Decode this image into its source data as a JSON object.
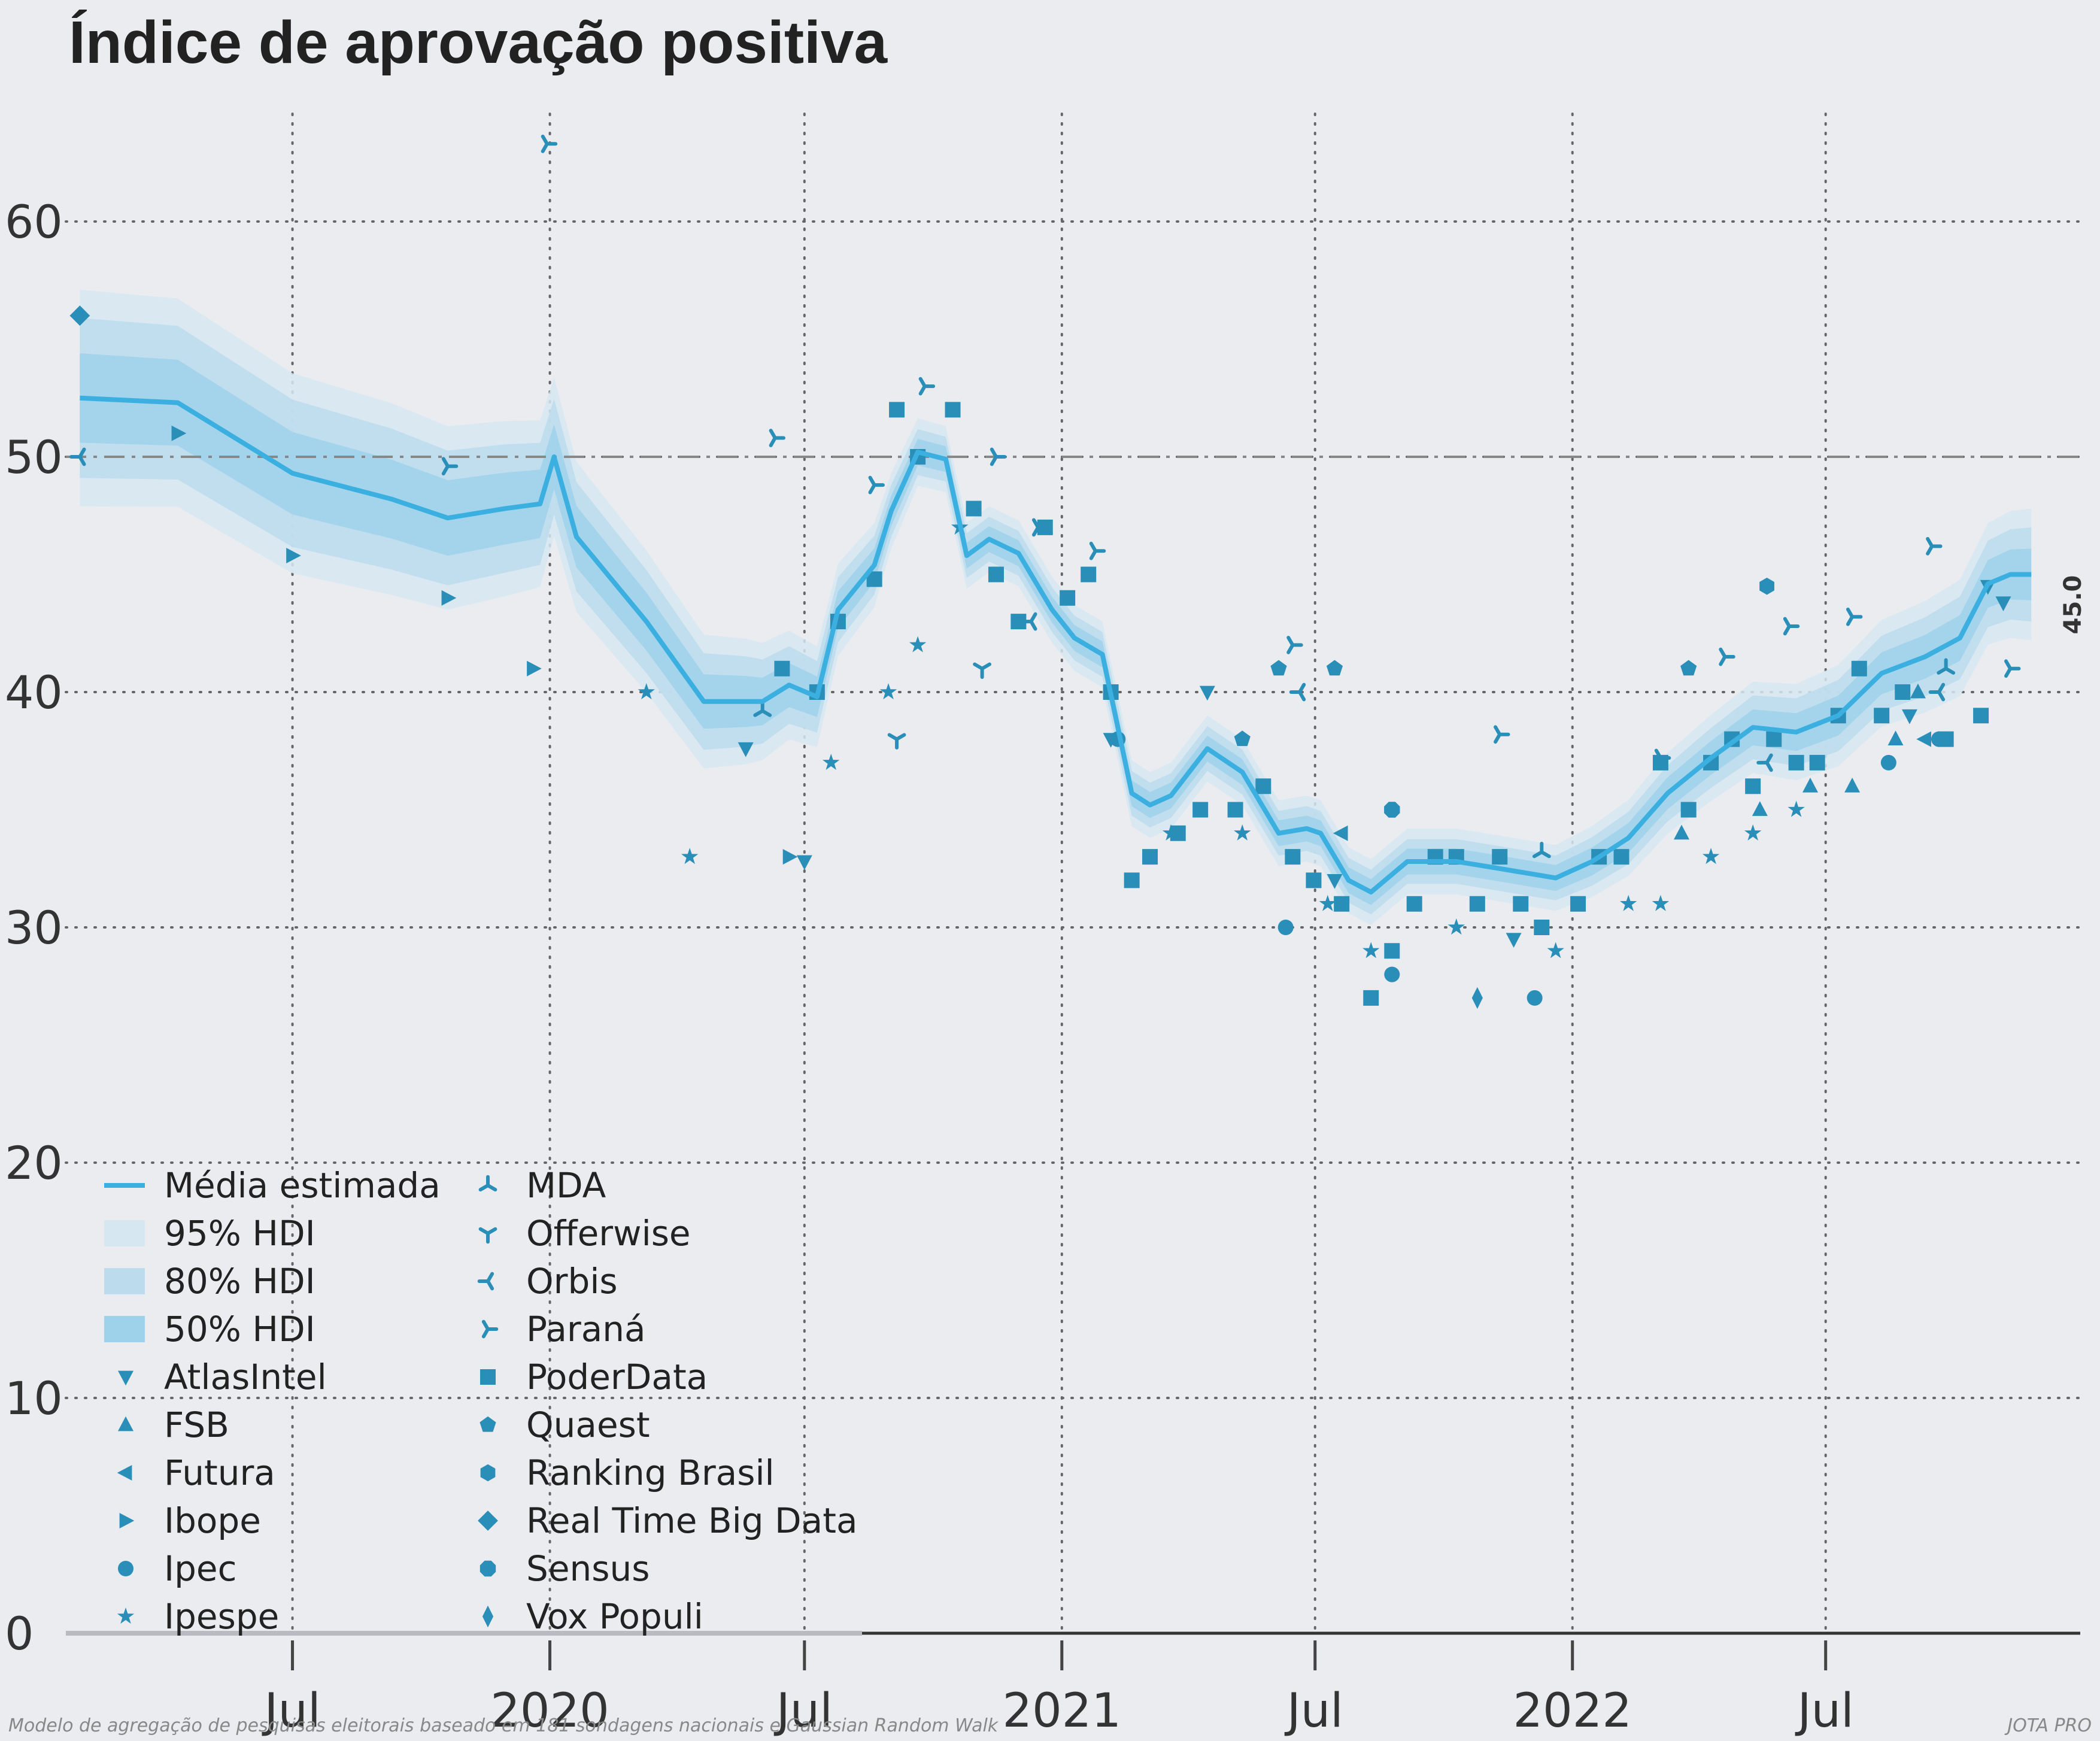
{
  "colors": {
    "background": "#ebecf0",
    "mean_line": "#3bb0e0",
    "band_95": "#d6e7f1",
    "band_80": "#bcdced",
    "band_50": "#9ed2ea",
    "markers": "#2a8fb8",
    "grid": "#666666",
    "reference_line": "#888888"
  },
  "chart_data": {
    "type": "line",
    "title": "Índice de aprovação positiva",
    "xlabel": "",
    "ylabel": "",
    "x_range": [
      "2019-01-20",
      "2022-12-30"
    ],
    "ylim": [
      0,
      65
    ],
    "y_ticks": [
      0,
      10,
      20,
      30,
      40,
      50,
      60
    ],
    "x_ticks": [
      {
        "date": "2019-07-01",
        "label": "Jul"
      },
      {
        "date": "2020-01-01",
        "label": "2020"
      },
      {
        "date": "2020-07-01",
        "label": "Jul"
      },
      {
        "date": "2021-01-01",
        "label": "2021"
      },
      {
        "date": "2021-07-01",
        "label": "Jul"
      },
      {
        "date": "2022-01-01",
        "label": "2022"
      },
      {
        "date": "2022-07-01",
        "label": "Jul"
      }
    ],
    "grid": "dotted",
    "reference_line": {
      "y": 50,
      "style": "dash-dot"
    },
    "legend_position": "bottom-left",
    "end_value_label": "45.0",
    "footnote_left": "Modelo de agregação de pesquisas eleitorais baseado em 181 sondagens nacionais e Gaussian Random Walk",
    "footnote_right": "JOTA PRO",
    "mean": {
      "name": "Média estimada",
      "points": [
        [
          "2019-01-30",
          52.5
        ],
        [
          "2019-04-10",
          52.3
        ],
        [
          "2019-07-01",
          49.3
        ],
        [
          "2019-09-10",
          48.2
        ],
        [
          "2019-10-20",
          47.4
        ],
        [
          "2019-11-30",
          47.8
        ],
        [
          "2019-12-25",
          48.0
        ],
        [
          "2020-01-04",
          50.0
        ],
        [
          "2020-01-20",
          46.6
        ],
        [
          "2020-03-10",
          43.0
        ],
        [
          "2020-04-20",
          39.6
        ],
        [
          "2020-05-20",
          39.6
        ],
        [
          "2020-06-01",
          39.6
        ],
        [
          "2020-06-20",
          40.3
        ],
        [
          "2020-07-10",
          39.8
        ],
        [
          "2020-07-25",
          43.5
        ],
        [
          "2020-08-20",
          45.4
        ],
        [
          "2020-09-01",
          47.7
        ],
        [
          "2020-09-20",
          50.2
        ],
        [
          "2020-10-10",
          49.9
        ],
        [
          "2020-10-25",
          45.8
        ],
        [
          "2020-11-10",
          46.5
        ],
        [
          "2020-12-01",
          45.9
        ],
        [
          "2020-12-25",
          43.5
        ],
        [
          "2021-01-10",
          42.3
        ],
        [
          "2021-01-30",
          41.6
        ],
        [
          "2021-02-20",
          35.7
        ],
        [
          "2021-03-05",
          35.2
        ],
        [
          "2021-03-20",
          35.6
        ],
        [
          "2021-04-15",
          37.6
        ],
        [
          "2021-05-10",
          36.6
        ],
        [
          "2021-06-05",
          34.0
        ],
        [
          "2021-06-25",
          34.2
        ],
        [
          "2021-07-05",
          34.0
        ],
        [
          "2021-07-25",
          32.0
        ],
        [
          "2021-08-10",
          31.5
        ],
        [
          "2021-09-05",
          32.8
        ],
        [
          "2021-10-10",
          32.8
        ],
        [
          "2021-11-10",
          32.5
        ],
        [
          "2021-12-20",
          32.1
        ],
        [
          "2022-01-15",
          32.8
        ],
        [
          "2022-02-10",
          33.8
        ],
        [
          "2022-03-10",
          35.7
        ],
        [
          "2022-04-10",
          37.2
        ],
        [
          "2022-05-10",
          38.5
        ],
        [
          "2022-06-10",
          38.3
        ],
        [
          "2022-07-10",
          39.0
        ],
        [
          "2022-08-10",
          40.8
        ],
        [
          "2022-09-10",
          41.5
        ],
        [
          "2022-10-05",
          42.3
        ],
        [
          "2022-10-25",
          44.6
        ],
        [
          "2022-11-10",
          45.0
        ],
        [
          "2022-11-25",
          45.0
        ]
      ]
    },
    "bands": [
      {
        "name": "95% HDI",
        "half_width_start": 4.6,
        "half_width_mid": 1.4,
        "half_width_end": 2.8
      },
      {
        "name": "80% HDI",
        "half_width_start": 3.4,
        "half_width_mid": 0.95,
        "half_width_end": 2.0
      },
      {
        "name": "50% HDI",
        "half_width_start": 1.9,
        "half_width_mid": 0.55,
        "half_width_end": 1.1
      }
    ],
    "series": [
      {
        "name": "AtlasIntel",
        "marker": "tri-down",
        "points": [
          [
            "2020-05-20",
            37.6
          ],
          [
            "2020-07-01",
            32.8
          ],
          [
            "2021-02-05",
            38.0
          ],
          [
            "2021-04-15",
            40.0
          ],
          [
            "2021-07-15",
            32.0
          ],
          [
            "2021-11-20",
            29.5
          ],
          [
            "2022-08-30",
            39.0
          ],
          [
            "2022-10-25",
            44.5
          ],
          [
            "2022-11-05",
            43.8
          ]
        ]
      },
      {
        "name": "FSB",
        "marker": "tri-up",
        "points": [
          [
            "2022-03-20",
            34.0
          ],
          [
            "2022-05-15",
            35.0
          ],
          [
            "2022-06-20",
            36.0
          ],
          [
            "2022-07-20",
            36.0
          ],
          [
            "2022-08-20",
            38.0
          ],
          [
            "2022-09-05",
            40.0
          ]
        ]
      },
      {
        "name": "Futura",
        "marker": "tri-left",
        "points": [
          [
            "2021-07-20",
            34.0
          ],
          [
            "2022-09-10",
            38.0
          ]
        ]
      },
      {
        "name": "Ibope",
        "marker": "tri-right",
        "points": [
          [
            "2019-04-10",
            51.0
          ],
          [
            "2019-07-01",
            45.8
          ],
          [
            "2019-10-20",
            44.0
          ],
          [
            "2019-12-20",
            41.0
          ],
          [
            "2020-06-20",
            33.0
          ]
        ]
      },
      {
        "name": "Ipec",
        "marker": "circle",
        "points": [
          [
            "2021-02-10",
            38.0
          ],
          [
            "2021-06-10",
            30.0
          ],
          [
            "2021-08-25",
            28.0
          ],
          [
            "2021-12-05",
            27.0
          ],
          [
            "2022-08-15",
            37.0
          ],
          [
            "2022-09-20",
            38.0
          ]
        ]
      },
      {
        "name": "Ipespe",
        "marker": "star",
        "points": [
          [
            "2020-03-10",
            40.0
          ],
          [
            "2020-04-10",
            33.0
          ],
          [
            "2020-07-20",
            37.0
          ],
          [
            "2020-08-30",
            40.0
          ],
          [
            "2020-09-20",
            42.0
          ],
          [
            "2020-10-20",
            47.0
          ],
          [
            "2021-03-20",
            34.0
          ],
          [
            "2021-05-10",
            34.0
          ],
          [
            "2021-07-10",
            31.0
          ],
          [
            "2021-08-10",
            29.0
          ],
          [
            "2021-10-10",
            30.0
          ],
          [
            "2021-12-20",
            29.0
          ],
          [
            "2022-02-10",
            31.0
          ],
          [
            "2022-03-05",
            31.0
          ],
          [
            "2022-04-10",
            33.0
          ],
          [
            "2022-05-10",
            34.0
          ],
          [
            "2022-06-10",
            35.0
          ]
        ]
      },
      {
        "name": "MDA",
        "marker": "tri-y",
        "points": [
          [
            "2020-06-01",
            39.2
          ],
          [
            "2021-12-10",
            33.2
          ],
          [
            "2022-09-25",
            41.0
          ]
        ]
      },
      {
        "name": "Offerwise",
        "marker": "tri-down-3",
        "points": [
          [
            "2020-09-05",
            38.0
          ],
          [
            "2020-11-05",
            41.0
          ]
        ]
      },
      {
        "name": "Orbis",
        "marker": "tri-left-3",
        "points": [
          [
            "2019-01-30",
            50.0
          ],
          [
            "2020-12-10",
            43.0
          ],
          [
            "2021-06-20",
            40.0
          ],
          [
            "2022-05-20",
            37.0
          ],
          [
            "2022-09-20",
            40.0
          ]
        ]
      },
      {
        "name": "Paraná",
        "marker": "tri-right-3",
        "points": [
          [
            "2019-12-30",
            63.3
          ],
          [
            "2019-10-20",
            49.6
          ],
          [
            "2020-06-10",
            50.8
          ],
          [
            "2020-08-20",
            48.8
          ],
          [
            "2020-09-25",
            53.0
          ],
          [
            "2020-11-15",
            50.0
          ],
          [
            "2020-12-15",
            47.0
          ],
          [
            "2021-01-25",
            46.0
          ],
          [
            "2021-06-15",
            42.0
          ],
          [
            "2021-11-10",
            38.2
          ],
          [
            "2022-03-05",
            37.2
          ],
          [
            "2022-04-20",
            41.5
          ],
          [
            "2022-06-05",
            42.8
          ],
          [
            "2022-07-20",
            43.2
          ],
          [
            "2022-09-15",
            46.2
          ],
          [
            "2022-11-10",
            41.0
          ]
        ]
      },
      {
        "name": "PoderData",
        "marker": "square",
        "points": [
          [
            "2020-06-15",
            41.0
          ],
          [
            "2020-07-10",
            40.0
          ],
          [
            "2020-07-25",
            43.0
          ],
          [
            "2020-08-20",
            44.8
          ],
          [
            "2020-09-05",
            52.0
          ],
          [
            "2020-09-20",
            50.0
          ],
          [
            "2020-10-15",
            52.0
          ],
          [
            "2020-10-30",
            47.8
          ],
          [
            "2020-11-15",
            45.0
          ],
          [
            "2020-12-01",
            43.0
          ],
          [
            "2020-12-20",
            47.0
          ],
          [
            "2021-01-05",
            44.0
          ],
          [
            "2021-01-20",
            45.0
          ],
          [
            "2021-02-05",
            40.0
          ],
          [
            "2021-02-20",
            32.0
          ],
          [
            "2021-03-05",
            33.0
          ],
          [
            "2021-03-25",
            34.0
          ],
          [
            "2021-04-10",
            35.0
          ],
          [
            "2021-05-05",
            35.0
          ],
          [
            "2021-05-25",
            36.0
          ],
          [
            "2021-06-15",
            33.0
          ],
          [
            "2021-06-30",
            32.0
          ],
          [
            "2021-07-20",
            31.0
          ],
          [
            "2021-08-10",
            27.0
          ],
          [
            "2021-08-25",
            29.0
          ],
          [
            "2021-09-10",
            31.0
          ],
          [
            "2021-09-25",
            33.0
          ],
          [
            "2021-10-10",
            33.0
          ],
          [
            "2021-10-25",
            31.0
          ],
          [
            "2021-11-10",
            33.0
          ],
          [
            "2021-11-25",
            31.0
          ],
          [
            "2021-12-10",
            30.0
          ],
          [
            "2022-01-05",
            31.0
          ],
          [
            "2022-01-20",
            33.0
          ],
          [
            "2022-02-05",
            33.0
          ],
          [
            "2022-03-05",
            37.0
          ],
          [
            "2022-03-25",
            35.0
          ],
          [
            "2022-04-10",
            37.0
          ],
          [
            "2022-04-25",
            38.0
          ],
          [
            "2022-05-10",
            36.0
          ],
          [
            "2022-05-25",
            38.0
          ],
          [
            "2022-06-10",
            37.0
          ],
          [
            "2022-06-25",
            37.0
          ],
          [
            "2022-07-10",
            39.0
          ],
          [
            "2022-07-25",
            41.0
          ],
          [
            "2022-08-10",
            39.0
          ],
          [
            "2022-08-25",
            40.0
          ],
          [
            "2022-09-25",
            38.0
          ],
          [
            "2022-10-20",
            39.0
          ]
        ]
      },
      {
        "name": "Quaest",
        "marker": "pentagon",
        "points": [
          [
            "2021-06-05",
            41.0
          ],
          [
            "2021-07-15",
            41.0
          ],
          [
            "2021-05-10",
            38.0
          ],
          [
            "2022-03-25",
            41.0
          ]
        ]
      },
      {
        "name": "Ranking Brasil",
        "marker": "hexagon",
        "points": [
          [
            "2022-05-20",
            44.5
          ]
        ]
      },
      {
        "name": "Real Time Big Data",
        "marker": "diamond",
        "points": [
          [
            "2019-01-30",
            56.0
          ]
        ]
      },
      {
        "name": "Sensus",
        "marker": "octagon",
        "points": [
          [
            "2021-08-25",
            35.0
          ]
        ]
      },
      {
        "name": "Vox Populi",
        "marker": "thin-diamond",
        "points": [
          [
            "2021-10-25",
            27.0
          ]
        ]
      }
    ]
  }
}
